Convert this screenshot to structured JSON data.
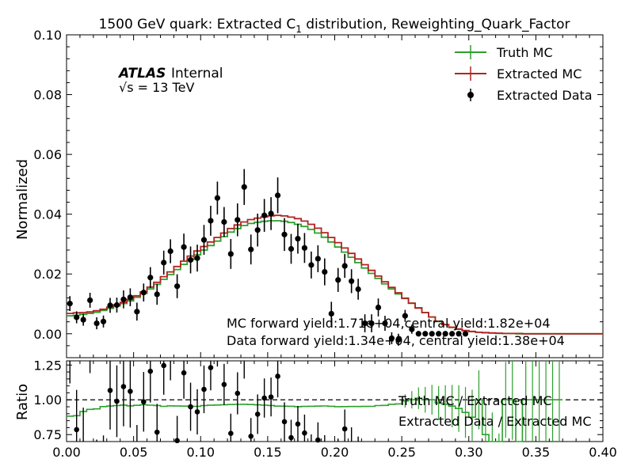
{
  "chart_data": {
    "type": "line",
    "title_main": "1500 GeV quark: Extracted C",
    "title_sub": "1",
    "title_rest": " distribution, Reweighting_Quark_Factor",
    "atlas_label": "ATLAS",
    "atlas_status": "Internal",
    "energy_prefix": "√s = ",
    "energy_value": "13 TeV",
    "top_ylabel": "Normalized",
    "bottom_ylabel": "Ratio",
    "xlim": [
      0.0,
      0.4
    ],
    "top_ylim": [
      -0.008,
      0.1
    ],
    "ratio_ylim": [
      0.7,
      1.28
    ],
    "x_ticks": [
      "0.00",
      "0.05",
      "0.10",
      "0.15",
      "0.20",
      "0.25",
      "0.30",
      "0.35",
      "0.40"
    ],
    "top_y_ticks": [
      "0.00",
      "0.02",
      "0.04",
      "0.06",
      "0.08",
      "0.10"
    ],
    "ratio_y_ticks": [
      "0.75",
      "1.00",
      "1.25"
    ],
    "legend_top": [
      "Truth MC",
      "Extracted MC",
      "Extracted Data"
    ],
    "legend_ratio": [
      "Truth MC / Extracted MC",
      "Extracted Data / Extracted MC"
    ],
    "annotation_mc": "MC forward yield:1.71e+04,central yield:1.82e+04",
    "annotation_data": "Data forward yield:1.34e+04, central yield:1.38e+04",
    "bin_width": 0.005,
    "series": [
      {
        "name": "Truth MC",
        "color": "#2ca02c",
        "bin_edges_start": 0.0,
        "values": [
          0.006,
          0.0062,
          0.0065,
          0.0068,
          0.0072,
          0.0078,
          0.0085,
          0.0093,
          0.0101,
          0.011,
          0.0122,
          0.0135,
          0.015,
          0.0165,
          0.0182,
          0.0198,
          0.0215,
          0.0232,
          0.0248,
          0.0264,
          0.028,
          0.0295,
          0.031,
          0.0325,
          0.034,
          0.0352,
          0.0362,
          0.0369,
          0.0373,
          0.0376,
          0.0378,
          0.0378,
          0.0376,
          0.0372,
          0.0366,
          0.0359,
          0.0349,
          0.0337,
          0.0323,
          0.0307,
          0.029,
          0.0273,
          0.0256,
          0.0238,
          0.022,
          0.0202,
          0.0185,
          0.0167,
          0.015,
          0.0133,
          0.0118,
          0.0102,
          0.0087,
          0.0071,
          0.0056,
          0.0041,
          0.003,
          0.0021,
          0.0015,
          0.001,
          0.0007,
          0.0005,
          0.0003,
          0.0002,
          0.0001,
          0.0001,
          0.0001,
          0.0,
          0.0,
          0.0,
          0.0,
          0.0,
          0.0,
          0.0,
          0.0,
          0.0,
          0.0,
          0.0,
          0.0,
          0.0
        ]
      },
      {
        "name": "Extracted MC",
        "color": "#b22222",
        "bin_edges_start": 0.0,
        "values": [
          0.0068,
          0.007,
          0.0071,
          0.0073,
          0.0077,
          0.0082,
          0.0089,
          0.0097,
          0.0105,
          0.0115,
          0.0127,
          0.014,
          0.0156,
          0.0172,
          0.0191,
          0.0207,
          0.0225,
          0.0243,
          0.026,
          0.0277,
          0.0292,
          0.0307,
          0.0322,
          0.0337,
          0.0352,
          0.0364,
          0.0374,
          0.0382,
          0.0387,
          0.0391,
          0.0394,
          0.0396,
          0.0394,
          0.039,
          0.0385,
          0.0377,
          0.0366,
          0.0353,
          0.0338,
          0.0322,
          0.0305,
          0.0287,
          0.0269,
          0.025,
          0.0231,
          0.0212,
          0.0193,
          0.0174,
          0.0155,
          0.0137,
          0.0119,
          0.0102,
          0.0086,
          0.0071,
          0.0056,
          0.0042,
          0.0031,
          0.0022,
          0.0016,
          0.0011,
          0.0008,
          0.0005,
          0.0004,
          0.0003,
          0.0002,
          0.0001,
          0.0001,
          0.0001,
          0.0,
          0.0,
          0.0,
          0.0,
          0.0,
          0.0,
          0.0,
          0.0,
          0.0,
          0.0,
          0.0,
          0.0
        ]
      },
      {
        "name": "Extracted Data",
        "color": "#000000",
        "points": [
          {
            "x": 0.0025,
            "y": 0.0101,
            "err": 0.0025
          },
          {
            "x": 0.0075,
            "y": 0.0055,
            "err": 0.002
          },
          {
            "x": 0.0125,
            "y": 0.0047,
            "err": 0.002
          },
          {
            "x": 0.0175,
            "y": 0.0112,
            "err": 0.0025
          },
          {
            "x": 0.0225,
            "y": 0.0035,
            "err": 0.002
          },
          {
            "x": 0.0275,
            "y": 0.0041,
            "err": 0.002
          },
          {
            "x": 0.0325,
            "y": 0.0095,
            "err": 0.0025
          },
          {
            "x": 0.0375,
            "y": 0.0096,
            "err": 0.0025
          },
          {
            "x": 0.0425,
            "y": 0.0115,
            "err": 0.003
          },
          {
            "x": 0.0475,
            "y": 0.0122,
            "err": 0.003
          },
          {
            "x": 0.0525,
            "y": 0.0074,
            "err": 0.003
          },
          {
            "x": 0.0575,
            "y": 0.0138,
            "err": 0.003
          },
          {
            "x": 0.0625,
            "y": 0.0188,
            "err": 0.0035
          },
          {
            "x": 0.0675,
            "y": 0.0132,
            "err": 0.0035
          },
          {
            "x": 0.0725,
            "y": 0.0238,
            "err": 0.004
          },
          {
            "x": 0.0775,
            "y": 0.0276,
            "err": 0.004
          },
          {
            "x": 0.0825,
            "y": 0.0159,
            "err": 0.004
          },
          {
            "x": 0.0875,
            "y": 0.029,
            "err": 0.0045
          },
          {
            "x": 0.0925,
            "y": 0.0247,
            "err": 0.0045
          },
          {
            "x": 0.0975,
            "y": 0.0253,
            "err": 0.0045
          },
          {
            "x": 0.1025,
            "y": 0.0314,
            "err": 0.005
          },
          {
            "x": 0.1075,
            "y": 0.0378,
            "err": 0.005
          },
          {
            "x": 0.1125,
            "y": 0.0454,
            "err": 0.0055
          },
          {
            "x": 0.1175,
            "y": 0.0374,
            "err": 0.005
          },
          {
            "x": 0.1225,
            "y": 0.0267,
            "err": 0.005
          },
          {
            "x": 0.1275,
            "y": 0.0381,
            "err": 0.0055
          },
          {
            "x": 0.1325,
            "y": 0.0491,
            "err": 0.006
          },
          {
            "x": 0.1375,
            "y": 0.0282,
            "err": 0.005
          },
          {
            "x": 0.1425,
            "y": 0.0347,
            "err": 0.0055
          },
          {
            "x": 0.1475,
            "y": 0.0396,
            "err": 0.0055
          },
          {
            "x": 0.1525,
            "y": 0.0402,
            "err": 0.0055
          },
          {
            "x": 0.1575,
            "y": 0.0463,
            "err": 0.006
          },
          {
            "x": 0.1625,
            "y": 0.0332,
            "err": 0.0055
          },
          {
            "x": 0.1675,
            "y": 0.0284,
            "err": 0.005
          },
          {
            "x": 0.1725,
            "y": 0.0318,
            "err": 0.005
          },
          {
            "x": 0.1775,
            "y": 0.0287,
            "err": 0.005
          },
          {
            "x": 0.1825,
            "y": 0.023,
            "err": 0.0045
          },
          {
            "x": 0.1875,
            "y": 0.0251,
            "err": 0.0045
          },
          {
            "x": 0.1925,
            "y": 0.0207,
            "err": 0.0045
          },
          {
            "x": 0.1975,
            "y": 0.0067,
            "err": 0.004
          },
          {
            "x": 0.2025,
            "y": 0.018,
            "err": 0.004
          },
          {
            "x": 0.2075,
            "y": 0.0227,
            "err": 0.004
          },
          {
            "x": 0.2125,
            "y": 0.0176,
            "err": 0.004
          },
          {
            "x": 0.2175,
            "y": 0.0149,
            "err": 0.0035
          },
          {
            "x": 0.2225,
            "y": 0.0035,
            "err": 0.003
          },
          {
            "x": 0.2275,
            "y": 0.0035,
            "err": 0.003
          },
          {
            "x": 0.2325,
            "y": 0.0088,
            "err": 0.003
          },
          {
            "x": 0.2375,
            "y": 0.0035,
            "err": 0.0025
          },
          {
            "x": 0.2425,
            "y": -0.0015,
            "err": 0.002
          },
          {
            "x": 0.2475,
            "y": -0.002,
            "err": 0.002
          },
          {
            "x": 0.2525,
            "y": 0.006,
            "err": 0.002
          },
          {
            "x": 0.2575,
            "y": 0.0015,
            "err": 0.0015
          },
          {
            "x": 0.2625,
            "y": 0.0,
            "err": 0.0005
          },
          {
            "x": 0.2675,
            "y": 0.0,
            "err": 0.0003
          },
          {
            "x": 0.2725,
            "y": 0.0,
            "err": 0.0003
          },
          {
            "x": 0.2775,
            "y": 0.0,
            "err": 0.0003
          },
          {
            "x": 0.2825,
            "y": 0.0,
            "err": 0.0003
          },
          {
            "x": 0.2875,
            "y": 0.0,
            "err": 0.0003
          },
          {
            "x": 0.2925,
            "y": 0.0,
            "err": 0.0003
          },
          {
            "x": 0.2975,
            "y": 0.0,
            "err": 0.0003
          }
        ]
      }
    ]
  }
}
